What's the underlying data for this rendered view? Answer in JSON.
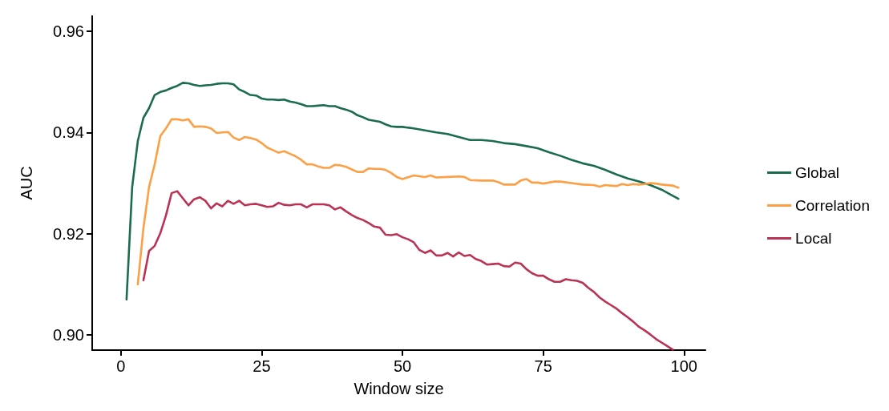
{
  "chart_data": {
    "type": "line",
    "xlabel": "Window size",
    "ylabel": "AUC",
    "xlim": [
      -5.1,
      103.8
    ],
    "ylim": [
      0.897,
      0.963
    ],
    "xticks": [
      0,
      25,
      50,
      75,
      100
    ],
    "yticks": [
      {
        "value": 0.9,
        "label": "0.90"
      },
      0.92,
      0.94,
      0.96
    ],
    "grid": false,
    "legend": "right",
    "marker": "none",
    "line_style": "solid",
    "series": [
      {
        "name": "Global",
        "color": "#1a6b4f",
        "x": [
          1,
          2,
          3,
          4,
          5,
          6,
          7,
          8,
          9,
          10,
          11,
          12,
          13,
          14,
          15,
          16,
          17,
          18,
          19,
          20,
          21,
          22,
          23,
          24,
          25,
          26,
          27,
          28,
          29,
          30,
          31,
          32,
          33,
          34,
          35,
          36,
          37,
          38,
          39,
          40,
          41,
          42,
          43,
          44,
          45,
          46,
          47,
          48,
          49,
          50,
          52,
          54,
          56,
          58,
          60,
          62,
          64,
          66,
          68,
          70,
          72,
          74,
          76,
          78,
          80,
          82,
          84,
          86,
          88,
          90,
          92,
          94,
          96,
          98,
          99
        ],
        "values": [
          0.907,
          0.9292,
          0.9383,
          0.9429,
          0.9448,
          0.9474,
          0.948,
          0.9483,
          0.9488,
          0.9492,
          0.9498,
          0.9497,
          0.9494,
          0.9492,
          0.9493,
          0.9494,
          0.9496,
          0.9497,
          0.9497,
          0.9495,
          0.9485,
          0.948,
          0.9474,
          0.9473,
          0.9467,
          0.9465,
          0.9465,
          0.9464,
          0.9465,
          0.9461,
          0.9459,
          0.9456,
          0.9452,
          0.9452,
          0.9453,
          0.9454,
          0.9452,
          0.9452,
          0.9448,
          0.9445,
          0.9441,
          0.9434,
          0.943,
          0.9425,
          0.9423,
          0.9421,
          0.9416,
          0.9412,
          0.9411,
          0.9411,
          0.9408,
          0.9404,
          0.94,
          0.9397,
          0.9391,
          0.9385,
          0.9385,
          0.9383,
          0.9379,
          0.9377,
          0.9373,
          0.9369,
          0.9361,
          0.9354,
          0.9346,
          0.9339,
          0.9334,
          0.9326,
          0.9317,
          0.9309,
          0.9303,
          0.9296,
          0.9287,
          0.9275,
          0.9269
        ]
      },
      {
        "name": "Correlation",
        "color": "#fd9f45",
        "x": [
          3,
          4,
          5,
          6,
          7,
          8,
          9,
          10,
          11,
          12,
          13,
          14,
          15,
          16,
          17,
          18,
          19,
          20,
          21,
          22,
          23,
          24,
          25,
          26,
          27,
          28,
          29,
          30,
          31,
          32,
          33,
          34,
          35,
          36,
          37,
          38,
          39,
          40,
          41,
          42,
          43,
          44,
          45,
          46,
          47,
          48,
          49,
          50,
          52,
          54,
          55,
          56,
          58,
          60,
          61,
          62,
          64,
          66,
          67,
          68,
          70,
          71,
          72,
          73,
          74,
          75,
          76,
          77,
          78,
          80,
          82,
          84,
          85,
          86,
          88,
          89,
          90,
          91,
          92,
          93,
          94,
          95,
          96,
          98,
          99
        ],
        "values": [
          0.91,
          0.9211,
          0.9292,
          0.9337,
          0.9393,
          0.9408,
          0.9426,
          0.9426,
          0.9424,
          0.9426,
          0.9411,
          0.9412,
          0.9411,
          0.9408,
          0.9399,
          0.94,
          0.9401,
          0.939,
          0.9385,
          0.9391,
          0.9389,
          0.9386,
          0.9379,
          0.937,
          0.9365,
          0.936,
          0.9363,
          0.9358,
          0.9353,
          0.9346,
          0.9337,
          0.9337,
          0.9333,
          0.933,
          0.933,
          0.9336,
          0.9335,
          0.9332,
          0.9327,
          0.9322,
          0.9322,
          0.9329,
          0.9328,
          0.9328,
          0.9326,
          0.932,
          0.9312,
          0.9308,
          0.9315,
          0.9312,
          0.9315,
          0.9311,
          0.9312,
          0.9313,
          0.9312,
          0.9306,
          0.9305,
          0.9305,
          0.9302,
          0.9297,
          0.9297,
          0.9305,
          0.9308,
          0.9301,
          0.9301,
          0.9299,
          0.9301,
          0.9303,
          0.9303,
          0.93,
          0.9297,
          0.9296,
          0.9293,
          0.9296,
          0.9294,
          0.9298,
          0.9296,
          0.9298,
          0.9297,
          0.9298,
          0.93,
          0.9299,
          0.9297,
          0.9295,
          0.9291
        ]
      },
      {
        "name": "Local",
        "color": "#bb3354",
        "x": [
          4,
          5,
          6,
          7,
          8,
          9,
          10,
          11,
          12,
          13,
          14,
          15,
          16,
          17,
          18,
          19,
          20,
          21,
          22,
          23,
          24,
          25,
          26,
          27,
          28,
          29,
          30,
          31,
          32,
          33,
          34,
          35,
          36,
          37,
          38,
          39,
          40,
          41,
          42,
          43,
          44,
          45,
          46,
          47,
          48,
          49,
          50,
          51,
          52,
          53,
          54,
          55,
          56,
          57,
          58,
          59,
          60,
          61,
          62,
          63,
          64,
          65,
          66,
          67,
          68,
          69,
          70,
          71,
          72,
          73,
          74,
          75,
          76,
          77,
          78,
          79,
          80,
          81,
          82,
          83,
          84,
          85,
          86,
          87,
          88,
          89,
          90,
          91,
          92,
          93,
          94,
          95,
          96,
          97,
          98
        ],
        "values": [
          0.9108,
          0.9166,
          0.9176,
          0.9201,
          0.9236,
          0.928,
          0.9284,
          0.927,
          0.9256,
          0.9268,
          0.9272,
          0.9265,
          0.925,
          0.926,
          0.9254,
          0.9265,
          0.9259,
          0.9265,
          0.9256,
          0.9258,
          0.9259,
          0.9256,
          0.9253,
          0.9254,
          0.9261,
          0.9257,
          0.9256,
          0.9258,
          0.9258,
          0.9252,
          0.9258,
          0.9258,
          0.9258,
          0.9256,
          0.9248,
          0.9252,
          0.9244,
          0.9237,
          0.9231,
          0.9227,
          0.9221,
          0.9214,
          0.9212,
          0.9198,
          0.9197,
          0.9199,
          0.9193,
          0.9189,
          0.9183,
          0.9168,
          0.9162,
          0.9167,
          0.9157,
          0.9157,
          0.9162,
          0.9155,
          0.9163,
          0.9156,
          0.9158,
          0.915,
          0.9146,
          0.9139,
          0.914,
          0.9141,
          0.9136,
          0.9135,
          0.9143,
          0.9141,
          0.913,
          0.9122,
          0.9117,
          0.9117,
          0.911,
          0.9105,
          0.9105,
          0.911,
          0.9108,
          0.9107,
          0.9103,
          0.9093,
          0.9085,
          0.9074,
          0.9066,
          0.9059,
          0.9052,
          0.9043,
          0.9035,
          0.9026,
          0.9016,
          0.9009,
          0.9001,
          0.8992,
          0.8985,
          0.8978,
          0.8971
        ]
      }
    ]
  }
}
